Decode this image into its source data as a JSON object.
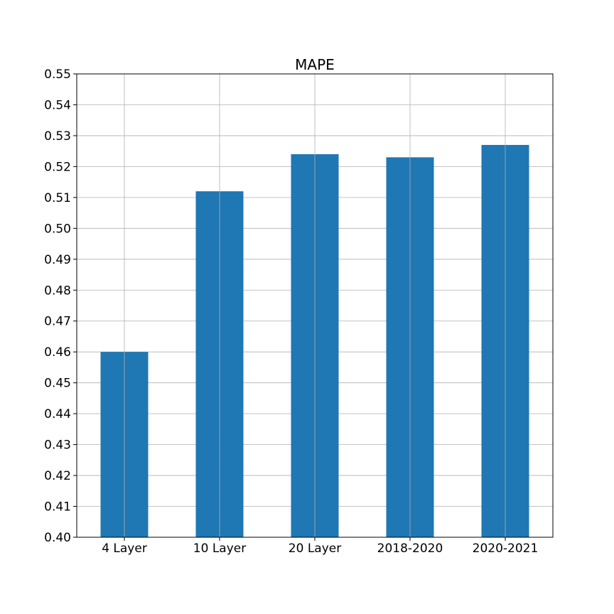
{
  "chart_data": {
    "type": "bar",
    "title": "MAPE",
    "xlabel": "",
    "ylabel": "",
    "categories": [
      "4 Layer",
      "10 Layer",
      "20 Layer",
      "2018-2020",
      "2020-2021"
    ],
    "values": [
      0.46,
      0.512,
      0.524,
      0.523,
      0.527
    ],
    "ylim": [
      0.4,
      0.55
    ],
    "yticks": [
      "0.40",
      "0.41",
      "0.42",
      "0.43",
      "0.44",
      "0.45",
      "0.46",
      "0.47",
      "0.48",
      "0.49",
      "0.50",
      "0.51",
      "0.52",
      "0.53",
      "0.54",
      "0.55"
    ],
    "grid": true,
    "legend": false,
    "bar_color": "#1f77b4"
  }
}
